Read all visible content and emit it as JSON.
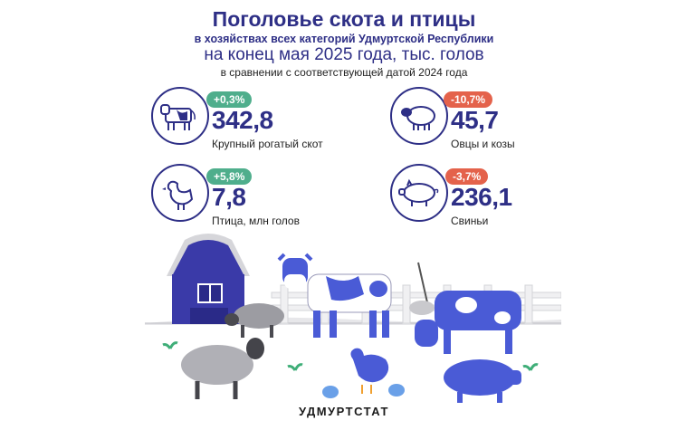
{
  "header": {
    "title": "Поголовье скота и птицы",
    "line2": "в хозяйствах всех категорий Удмуртской Республики",
    "line3": "на конец мая 2025 года, тыс. голов",
    "line4": "в сравнении с соответствующей датой 2024 года"
  },
  "stats": [
    {
      "icon": "cow-icon",
      "change": "+0,3%",
      "value": "342,8",
      "label": "Крупный рогатый скот",
      "trend": "up"
    },
    {
      "icon": "sheep-icon",
      "change": "-10,7%",
      "value": "45,7",
      "label": "Овцы и козы",
      "trend": "down"
    },
    {
      "icon": "chicken-icon",
      "change": "+5,8%",
      "value": "7,8",
      "label": "Птица, млн голов",
      "trend": "up"
    },
    {
      "icon": "pig-icon",
      "change": "-3,7%",
      "value": "236,1",
      "label": "Свиньи",
      "trend": "down"
    }
  ],
  "colors": {
    "primary": "#2e2f86",
    "up": "#4fae8c",
    "down": "#e4624b",
    "animal_blue": "#4a5bd6"
  },
  "footer": {
    "brand": "УДМУРТСТАТ"
  }
}
